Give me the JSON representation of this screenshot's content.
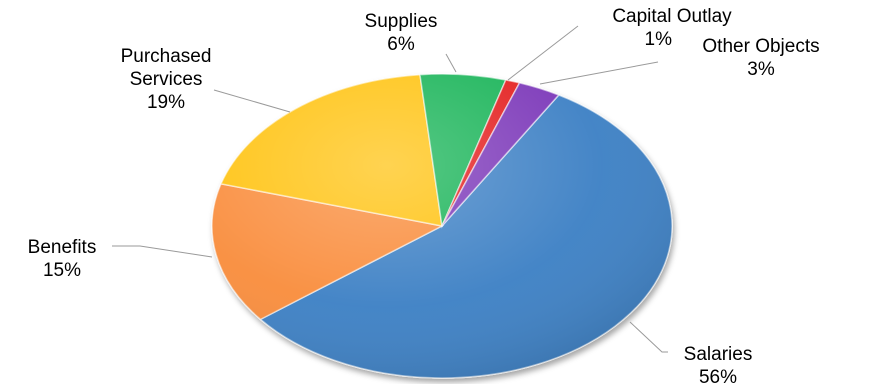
{
  "chart_data": {
    "type": "pie",
    "slices": [
      {
        "label": "Salaries",
        "percent_label": "56%",
        "value": 56,
        "color": "#3A7FC4"
      },
      {
        "label": "Benefits",
        "percent_label": "15%",
        "value": 15,
        "color": "#F98C3A"
      },
      {
        "label": "Purchased Services",
        "label_lines": [
          "Purchased",
          "Services"
        ],
        "percent_label": "19%",
        "value": 19,
        "color": "#FFC20E"
      },
      {
        "label": "Supplies",
        "percent_label": "6%",
        "value": 6,
        "color": "#14B356"
      },
      {
        "label": "Capital Outlay",
        "percent_label": "1%",
        "value": 1,
        "color": "#E31B1B"
      },
      {
        "label": "Other Objects",
        "percent_label": "3%",
        "value": 3,
        "color": "#7A35B8"
      }
    ],
    "legend": "none",
    "data_labels": "outside with leader lines"
  }
}
